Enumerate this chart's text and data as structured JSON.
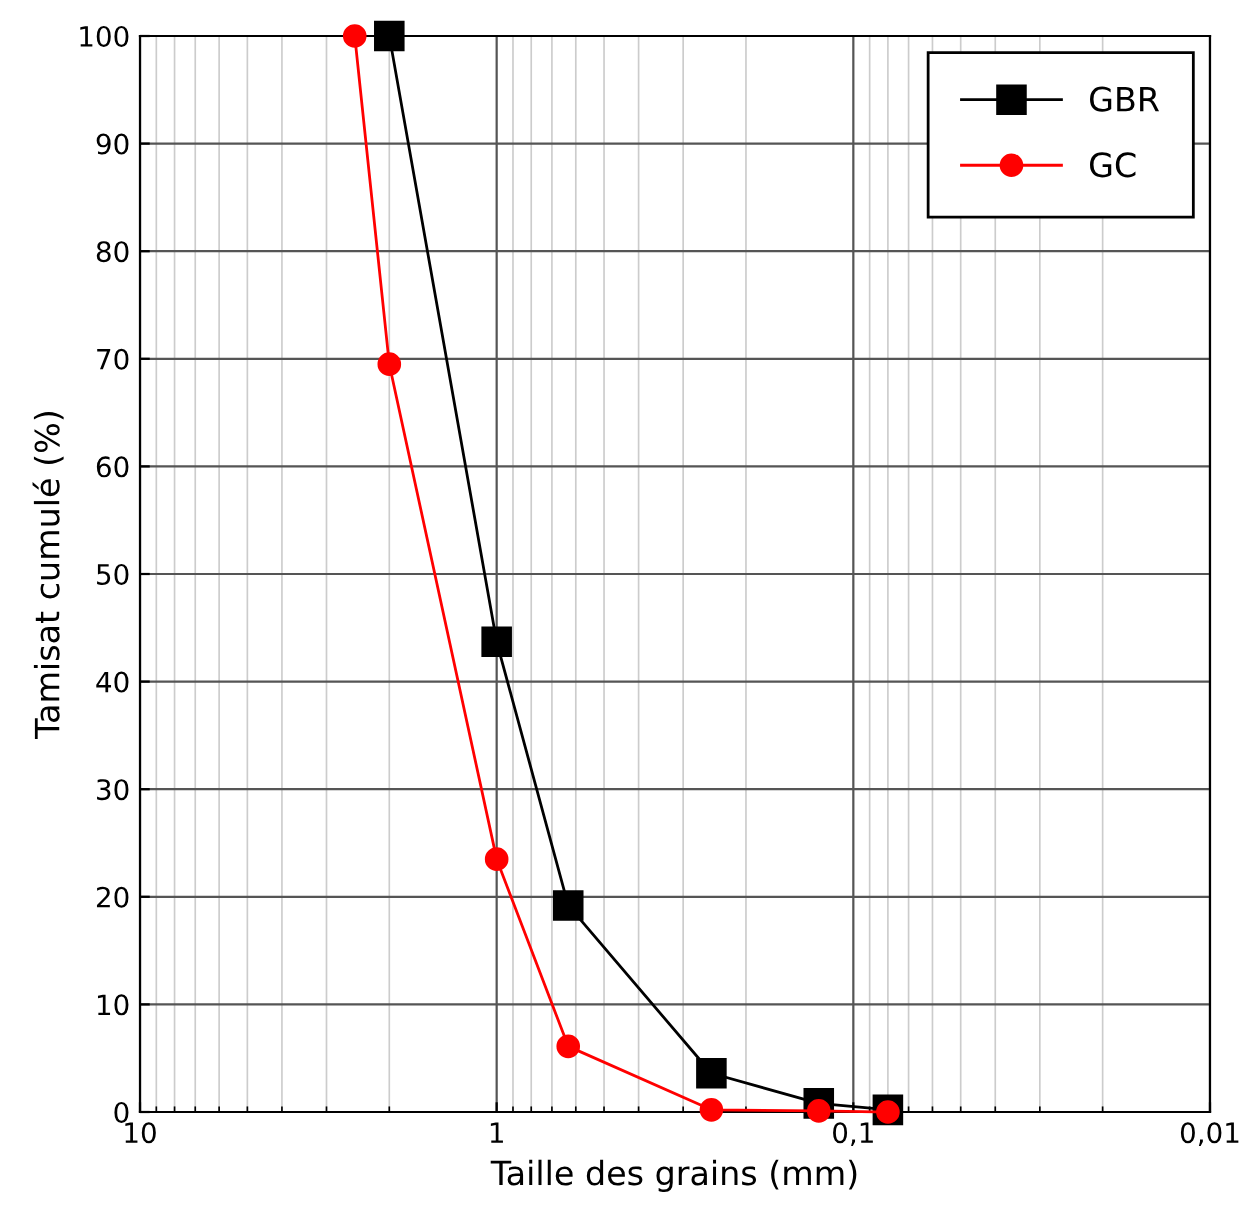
{
  "chart_data": {
    "type": "line",
    "xlabel": "Taille des grains (mm)",
    "ylabel": "Tamisat cumulé (%)",
    "log": "x",
    "xlim": [
      10,
      0.01
    ],
    "xticks": [
      {
        "value": 10,
        "label": "10"
      },
      {
        "value": 1,
        "label": "1"
      },
      {
        "value": 0.1,
        "label": "0,1"
      },
      {
        "value": 0.01,
        "label": "0,01"
      }
    ],
    "ylim": [
      0,
      100
    ],
    "yticks": [
      0,
      10,
      20,
      30,
      40,
      50,
      60,
      70,
      80,
      90,
      100
    ],
    "grid": true,
    "legend": "top right",
    "line_style": "solid",
    "series": [
      {
        "name": "GBR",
        "color": "#000000",
        "marker": "square",
        "x": [
          2,
          1,
          0.63,
          0.25,
          0.125,
          0.08
        ],
        "values": [
          100,
          43.7,
          19.2,
          3.6,
          0.8,
          0.2
        ]
      },
      {
        "name": "GC",
        "color": "#ff0000",
        "marker": "circle",
        "x": [
          2.5,
          2,
          1,
          0.63,
          0.25,
          0.125,
          0.08
        ],
        "values": [
          100,
          69.5,
          23.5,
          6.1,
          0.2,
          0.1,
          0
        ]
      }
    ]
  }
}
